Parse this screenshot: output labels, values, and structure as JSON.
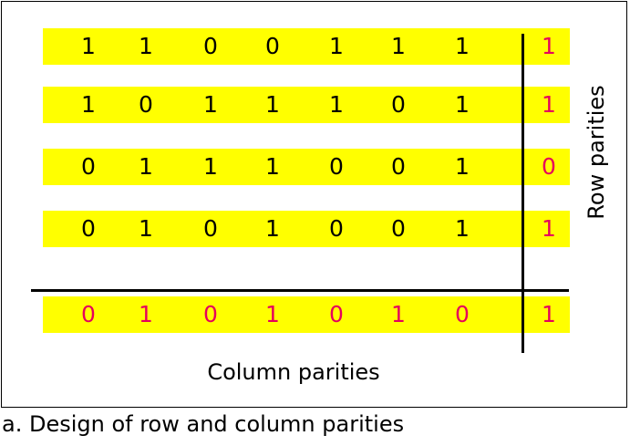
{
  "colors": {
    "highlight": "#ffff00",
    "data_bit": "#000000",
    "parity_bit": "#e6005c",
    "line": "#000000"
  },
  "data_rows": [
    {
      "bits": [
        "1",
        "1",
        "0",
        "0",
        "1",
        "1",
        "1"
      ],
      "parity": "1"
    },
    {
      "bits": [
        "1",
        "0",
        "1",
        "1",
        "1",
        "0",
        "1"
      ],
      "parity": "1"
    },
    {
      "bits": [
        "0",
        "1",
        "1",
        "1",
        "0",
        "0",
        "1"
      ],
      "parity": "0"
    },
    {
      "bits": [
        "0",
        "1",
        "0",
        "1",
        "0",
        "0",
        "1"
      ],
      "parity": "1"
    }
  ],
  "column_parity_row": {
    "bits": [
      "0",
      "1",
      "0",
      "1",
      "0",
      "1",
      "0"
    ],
    "parity": "1"
  },
  "labels": {
    "row_parities": "Row parities",
    "column_parities": "Column parities",
    "caption": "a. Design of row and column parities"
  }
}
